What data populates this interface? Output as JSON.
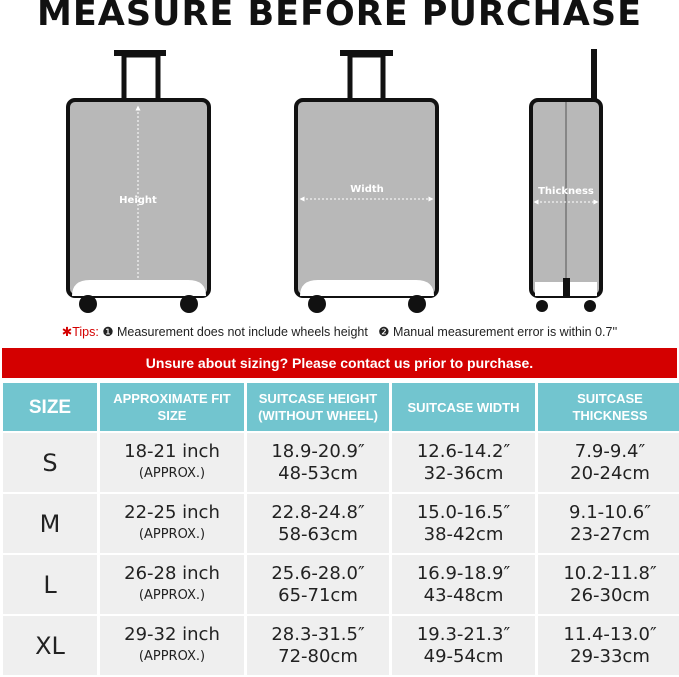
{
  "title": "MEASURE BEFORE PURCHASE",
  "diagram_labels": {
    "height": "Height",
    "width": "Width",
    "thickness": "Thickness"
  },
  "tips": {
    "prefix": "✱Tips:",
    "tip1": "❶ Measurement does not include wheels height",
    "tip2": "❷ Manual measurement error is within 0.7''"
  },
  "banner": "Unsure about sizing? Please contact us prior to purchase.",
  "colors": {
    "banner": "#d40000",
    "header": "#72c5cf",
    "cell": "#efefef",
    "case_fill": "#b8b8b8"
  },
  "table": {
    "headers": [
      "SIZE",
      "APPROXIMATE FIT SIZE",
      "SUITCASE HEIGHT (WITHOUT WHEEL)",
      "SUITCASE WIDTH",
      "SUITCASE THICKNESS"
    ],
    "rows": [
      {
        "size": "S",
        "fit": "18-21 inch",
        "fit_note": "(APPROX.)",
        "height_in": "18.9-20.9″",
        "height_cm": "48-53cm",
        "width_in": "12.6-14.2″",
        "width_cm": "32-36cm",
        "thick_in": "7.9-9.4″",
        "thick_cm": "20-24cm"
      },
      {
        "size": "M",
        "fit": "22-25 inch",
        "fit_note": "(APPROX.)",
        "height_in": "22.8-24.8″",
        "height_cm": "58-63cm",
        "width_in": "15.0-16.5″",
        "width_cm": "38-42cm",
        "thick_in": "9.1-10.6″",
        "thick_cm": "23-27cm"
      },
      {
        "size": "L",
        "fit": "26-28 inch",
        "fit_note": "(APPROX.)",
        "height_in": "25.6-28.0″",
        "height_cm": "65-71cm",
        "width_in": "16.9-18.9″",
        "width_cm": "43-48cm",
        "thick_in": "10.2-11.8″",
        "thick_cm": "26-30cm"
      },
      {
        "size": "XL",
        "fit": "29-32 inch",
        "fit_note": "(APPROX.)",
        "height_in": "28.3-31.5″",
        "height_cm": "72-80cm",
        "width_in": "19.3-21.3″",
        "width_cm": "49-54cm",
        "thick_in": "11.4-13.0″",
        "thick_cm": "29-33cm"
      }
    ]
  }
}
